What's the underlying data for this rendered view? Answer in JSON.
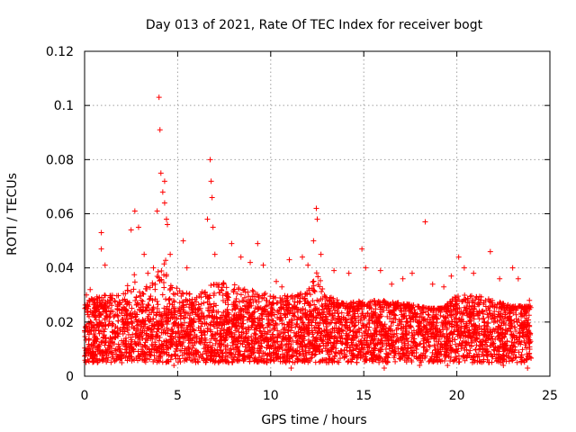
{
  "chart_data": {
    "type": "scatter",
    "title": "Day 013 of 2021, Rate Of TEC Index for receiver bogt",
    "xlabel": "GPS time / hours",
    "ylabel": "ROTI / TECUs",
    "xlim": [
      0,
      25
    ],
    "ylim": [
      0,
      0.12
    ],
    "x_ticks": [
      0,
      5,
      10,
      15,
      20,
      25
    ],
    "x_tick_labels": [
      "0",
      "5",
      "10",
      "15",
      "20",
      "25"
    ],
    "y_ticks": [
      0,
      0.02,
      0.04,
      0.06,
      0.08,
      0.1,
      0.12
    ],
    "y_tick_labels": [
      "0",
      "0.02",
      "0.04",
      "0.06",
      "0.08",
      "0.1",
      "0.12"
    ],
    "grid": true,
    "marker": "plus",
    "color": "#ff0000",
    "series": [
      {
        "name": "ROTI",
        "points": [
          [
            0.1,
            0.03
          ],
          [
            0.3,
            0.032
          ],
          [
            0.9,
            0.053
          ],
          [
            0.9,
            0.047
          ],
          [
            1.1,
            0.041
          ],
          [
            2.5,
            0.054
          ],
          [
            2.7,
            0.061
          ],
          [
            2.9,
            0.055
          ],
          [
            3.2,
            0.045
          ],
          [
            3.4,
            0.038
          ],
          [
            3.7,
            0.04
          ],
          [
            3.9,
            0.061
          ],
          [
            4.0,
            0.103
          ],
          [
            4.05,
            0.091
          ],
          [
            4.1,
            0.075
          ],
          [
            4.2,
            0.068
          ],
          [
            4.3,
            0.072
          ],
          [
            4.3,
            0.064
          ],
          [
            4.4,
            0.058
          ],
          [
            4.45,
            0.056
          ],
          [
            4.6,
            0.045
          ],
          [
            5.3,
            0.05
          ],
          [
            5.5,
            0.04
          ],
          [
            6.6,
            0.058
          ],
          [
            6.75,
            0.08
          ],
          [
            6.8,
            0.072
          ],
          [
            6.85,
            0.066
          ],
          [
            6.9,
            0.055
          ],
          [
            7.0,
            0.045
          ],
          [
            7.9,
            0.049
          ],
          [
            8.4,
            0.044
          ],
          [
            8.9,
            0.042
          ],
          [
            9.3,
            0.049
          ],
          [
            9.6,
            0.041
          ],
          [
            10.3,
            0.035
          ],
          [
            10.6,
            0.033
          ],
          [
            11.0,
            0.043
          ],
          [
            11.7,
            0.044
          ],
          [
            12.0,
            0.041
          ],
          [
            12.3,
            0.05
          ],
          [
            12.45,
            0.062
          ],
          [
            12.5,
            0.058
          ],
          [
            12.7,
            0.045
          ],
          [
            13.4,
            0.039
          ],
          [
            14.2,
            0.038
          ],
          [
            14.9,
            0.047
          ],
          [
            15.1,
            0.04
          ],
          [
            15.9,
            0.039
          ],
          [
            16.5,
            0.034
          ],
          [
            17.1,
            0.036
          ],
          [
            17.6,
            0.038
          ],
          [
            18.3,
            0.057
          ],
          [
            18.7,
            0.034
          ],
          [
            19.3,
            0.033
          ],
          [
            19.7,
            0.037
          ],
          [
            20.1,
            0.044
          ],
          [
            20.4,
            0.04
          ],
          [
            20.9,
            0.038
          ],
          [
            21.8,
            0.046
          ],
          [
            22.3,
            0.036
          ],
          [
            23.0,
            0.04
          ],
          [
            23.3,
            0.036
          ],
          [
            23.9,
            0.028
          ],
          [
            0.5,
            0.006
          ],
          [
            2.0,
            0.005
          ],
          [
            4.8,
            0.004
          ],
          [
            7.2,
            0.005
          ],
          [
            9.8,
            0.005
          ],
          [
            11.1,
            0.003
          ],
          [
            13.0,
            0.005
          ],
          [
            16.1,
            0.003
          ],
          [
            18.0,
            0.004
          ],
          [
            19.5,
            0.004
          ],
          [
            22.5,
            0.004
          ],
          [
            23.8,
            0.003
          ]
        ],
        "dense_band": {
          "x_range": [
            0,
            24
          ],
          "samples_per_hour": 180,
          "baseline": 0.0135,
          "baseline_range": [
            0.005,
            0.025
          ],
          "upper_envelope": [
            [
              0,
              0.028
            ],
            [
              1,
              0.03
            ],
            [
              2,
              0.03
            ],
            [
              2.7,
              0.038
            ],
            [
              3.0,
              0.03
            ],
            [
              4.0,
              0.04
            ],
            [
              4.4,
              0.045
            ],
            [
              5.0,
              0.032
            ],
            [
              6.0,
              0.03
            ],
            [
              7.0,
              0.035
            ],
            [
              8.0,
              0.034
            ],
            [
              9.0,
              0.032
            ],
            [
              10.0,
              0.03
            ],
            [
              11.0,
              0.03
            ],
            [
              12.0,
              0.032
            ],
            [
              12.5,
              0.04
            ],
            [
              13.0,
              0.03
            ],
            [
              14.0,
              0.027
            ],
            [
              15.0,
              0.028
            ],
            [
              16.0,
              0.028
            ],
            [
              17.0,
              0.027
            ],
            [
              18.0,
              0.026
            ],
            [
              19.0,
              0.024
            ],
            [
              20.0,
              0.03
            ],
            [
              21.0,
              0.03
            ],
            [
              22.0,
              0.028
            ],
            [
              23.0,
              0.026
            ],
            [
              24.0,
              0.026
            ]
          ]
        }
      }
    ]
  }
}
